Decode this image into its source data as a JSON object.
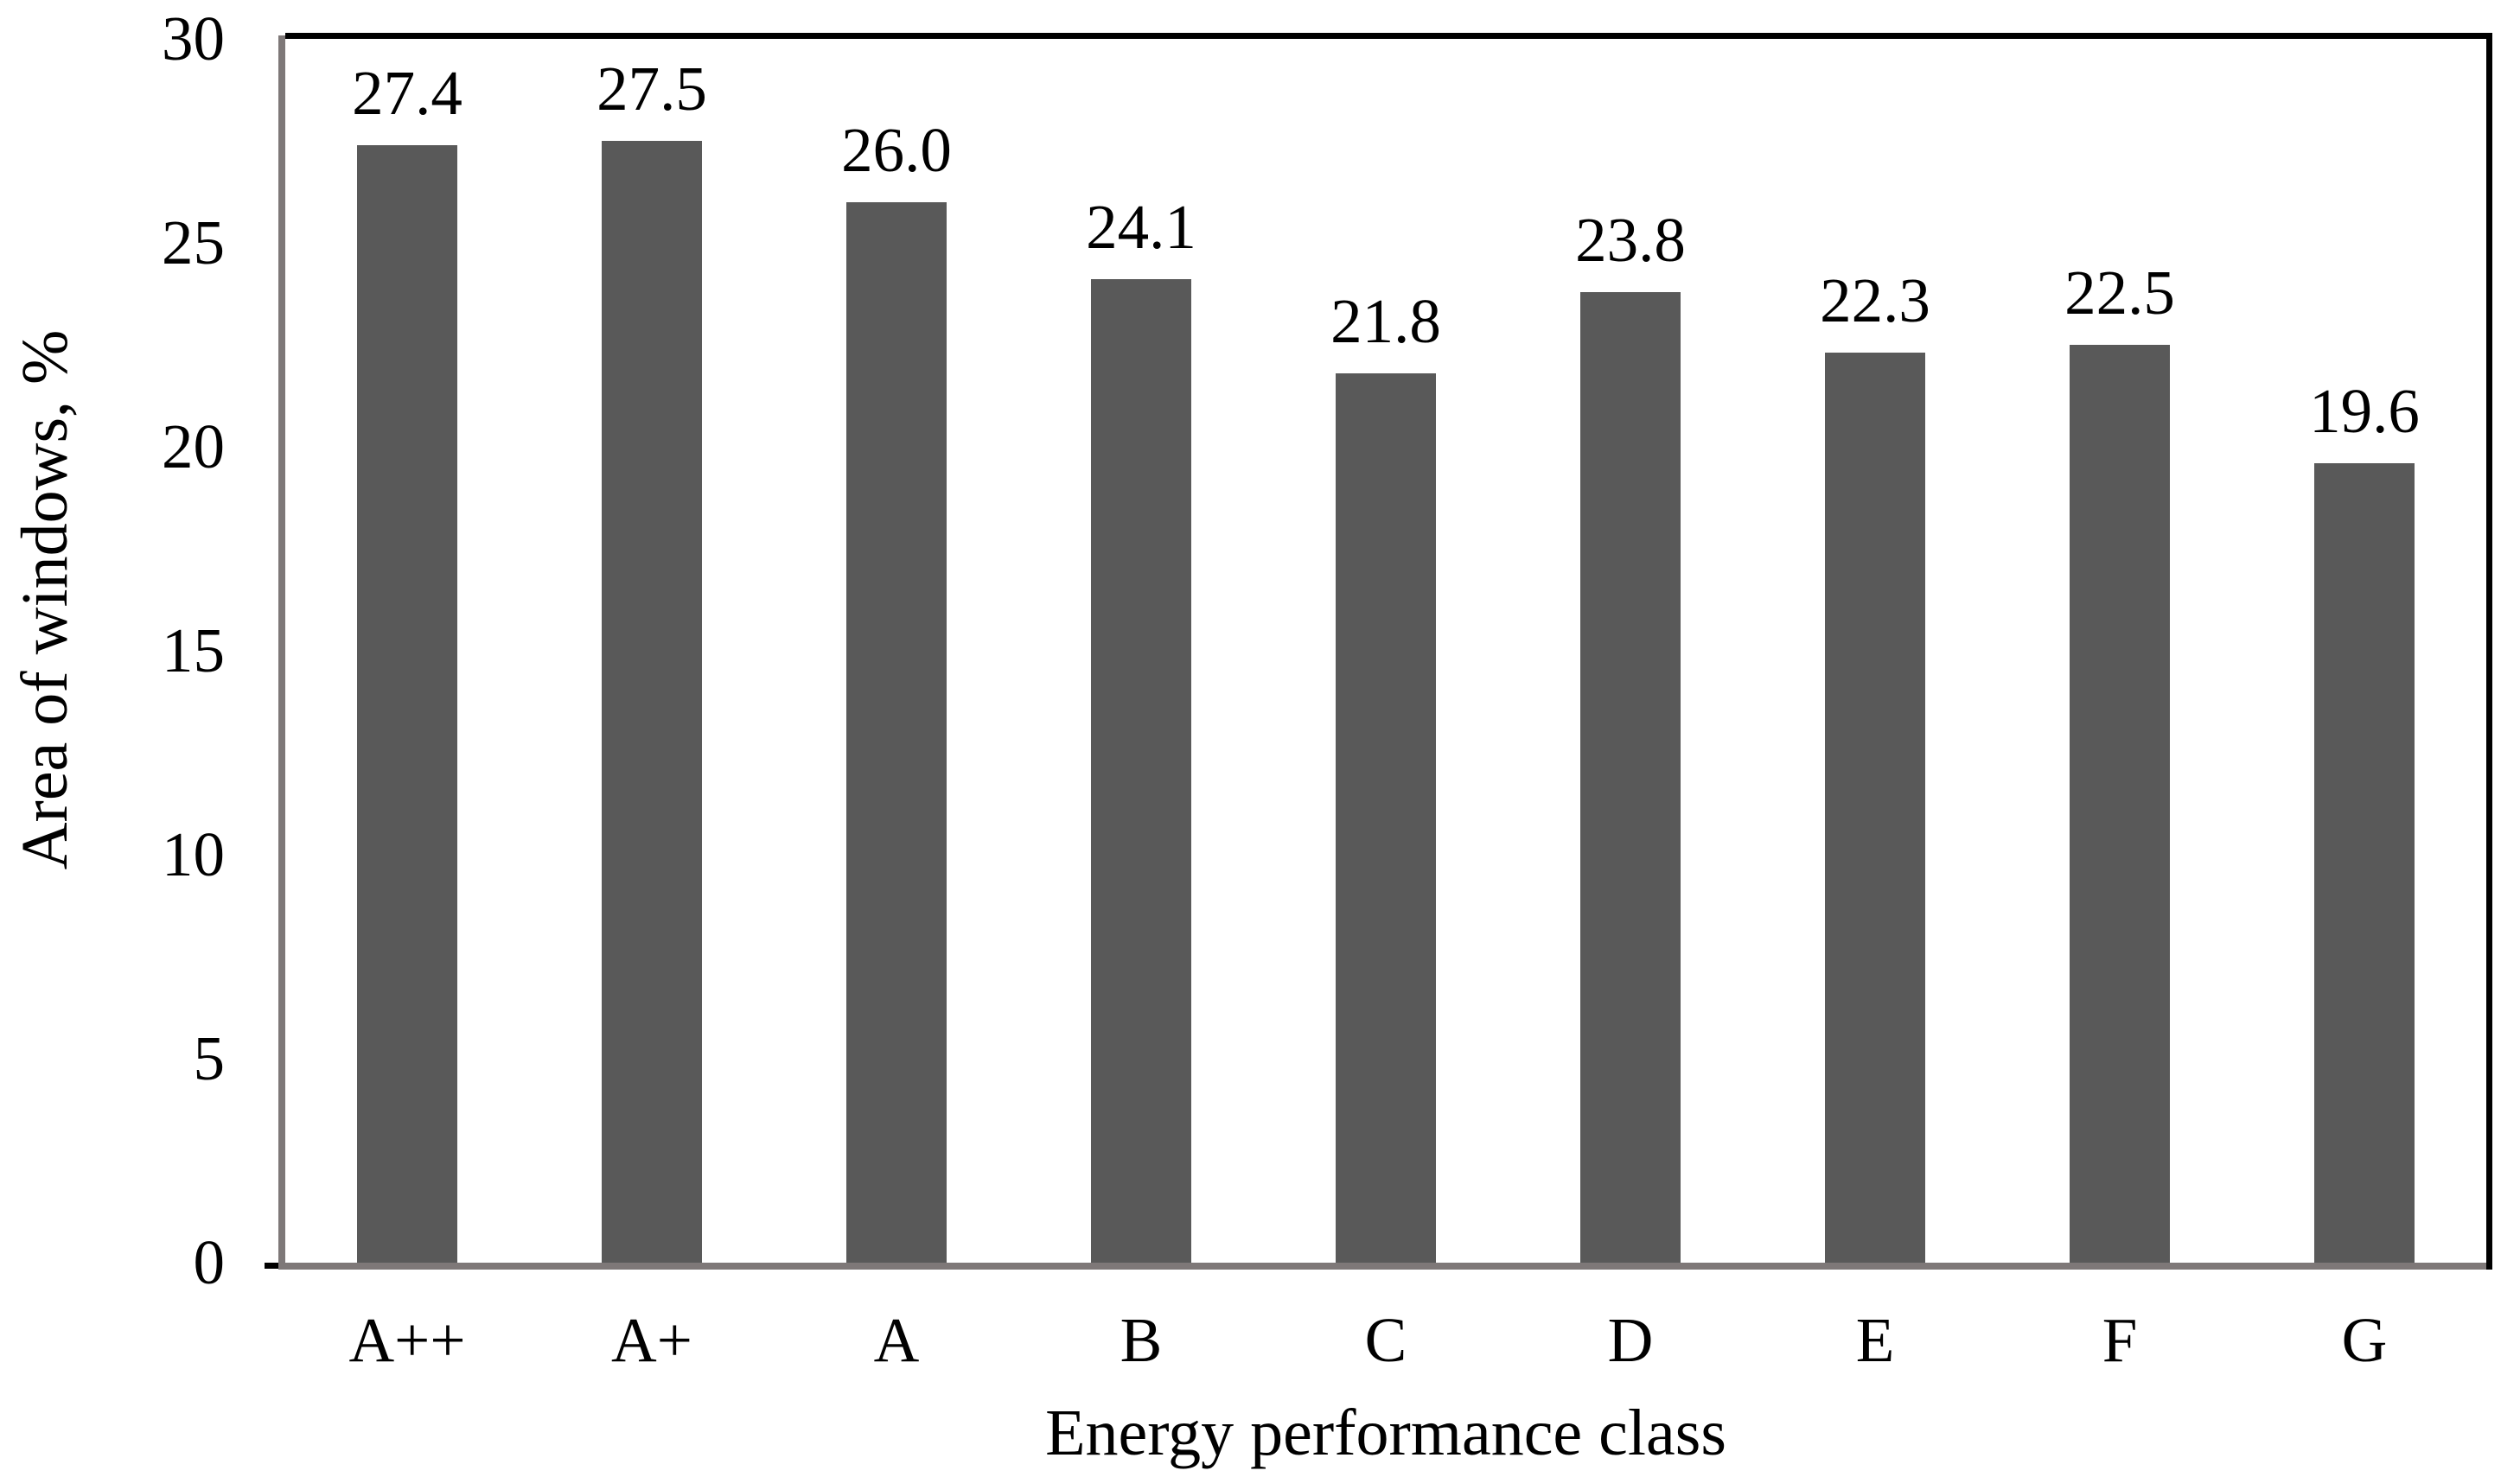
{
  "chart_data": {
    "type": "bar",
    "title": "",
    "categories": [
      "A++",
      "A+",
      "A",
      "B",
      "C",
      "D",
      "E",
      "F",
      "G"
    ],
    "values": [
      27.4,
      27.5,
      26.0,
      24.1,
      21.8,
      23.8,
      22.3,
      22.5,
      19.6
    ],
    "data_labels": [
      "27.4",
      "27.5",
      "26.0",
      "24.1",
      "21.8",
      "23.8",
      "22.3",
      "22.5",
      "19.6"
    ],
    "xlabel": "Energy performance class",
    "ylabel": "Area of windows, %",
    "ylim": [
      0,
      30
    ],
    "yticks": [
      30,
      25,
      20,
      15,
      10,
      5,
      0
    ],
    "grid": false,
    "legend": "none",
    "colors": {
      "bar_fill": "#595959",
      "axis_line": "#7E7878",
      "frame_line": "#000000",
      "text": "#000000",
      "background": "#FFFFFF"
    }
  }
}
